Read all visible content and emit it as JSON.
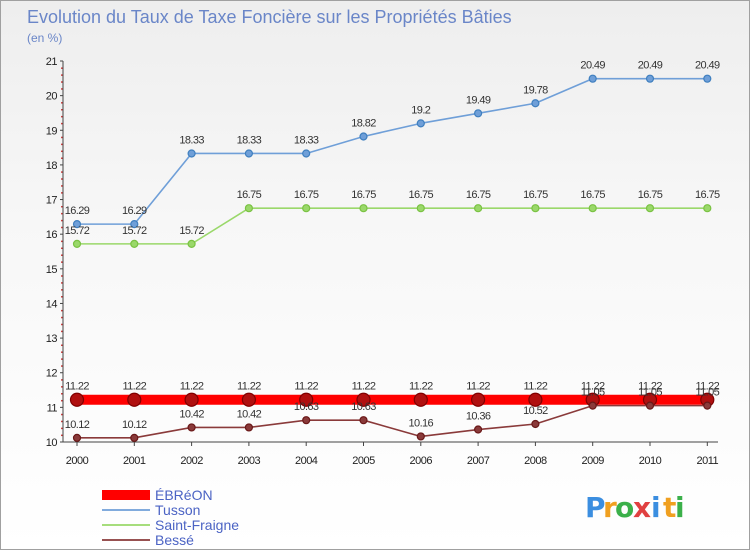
{
  "chart_data": {
    "type": "line",
    "title": "Evolution du Taux de Taxe Foncière sur les Propriétés Bâties",
    "subtitle": "(en %)",
    "categories": [
      "2000",
      "2001",
      "2002",
      "2003",
      "2004",
      "2005",
      "2006",
      "2007",
      "2008",
      "2009",
      "2010",
      "2011"
    ],
    "ylim": [
      10,
      21
    ],
    "yticks": [
      10,
      11,
      12,
      13,
      14,
      15,
      16,
      17,
      18,
      19,
      20,
      21
    ],
    "grid": false,
    "legend_position": "bottom-left",
    "series": [
      {
        "name": "ÉBRéON",
        "color": "#ff0000",
        "values": [
          11.22,
          11.22,
          11.22,
          11.22,
          11.22,
          11.22,
          11.22,
          11.22,
          11.22,
          11.22,
          11.22,
          11.22
        ]
      },
      {
        "name": "Tusson",
        "color": "#6f9fd8",
        "marker": "#3f7fbf",
        "values": [
          16.29,
          16.29,
          18.33,
          18.33,
          18.33,
          18.82,
          19.2,
          19.49,
          19.78,
          20.49,
          20.49,
          20.49
        ]
      },
      {
        "name": "Saint-Fraigne",
        "color": "#9ad86a",
        "marker": "#7ac243",
        "values": [
          15.72,
          15.72,
          15.72,
          16.75,
          16.75,
          16.75,
          16.75,
          16.75,
          16.75,
          16.75,
          16.75,
          16.75
        ]
      },
      {
        "name": "Bessé",
        "color": "#8a3a3a",
        "marker": "#6a1818",
        "values": [
          10.12,
          10.12,
          10.42,
          10.42,
          10.63,
          10.63,
          10.16,
          10.36,
          10.52,
          11.05,
          11.05,
          11.05
        ]
      }
    ]
  },
  "logo": {
    "text": "Proxiti",
    "letters": [
      "P",
      "r",
      "o",
      "x",
      "i",
      "t",
      "i"
    ],
    "colors": [
      "#3b8ee0",
      "#f0a020",
      "#3bb04a",
      "#e04040",
      "#3b8ee0",
      "#f0a020",
      "#3bb04a"
    ]
  }
}
